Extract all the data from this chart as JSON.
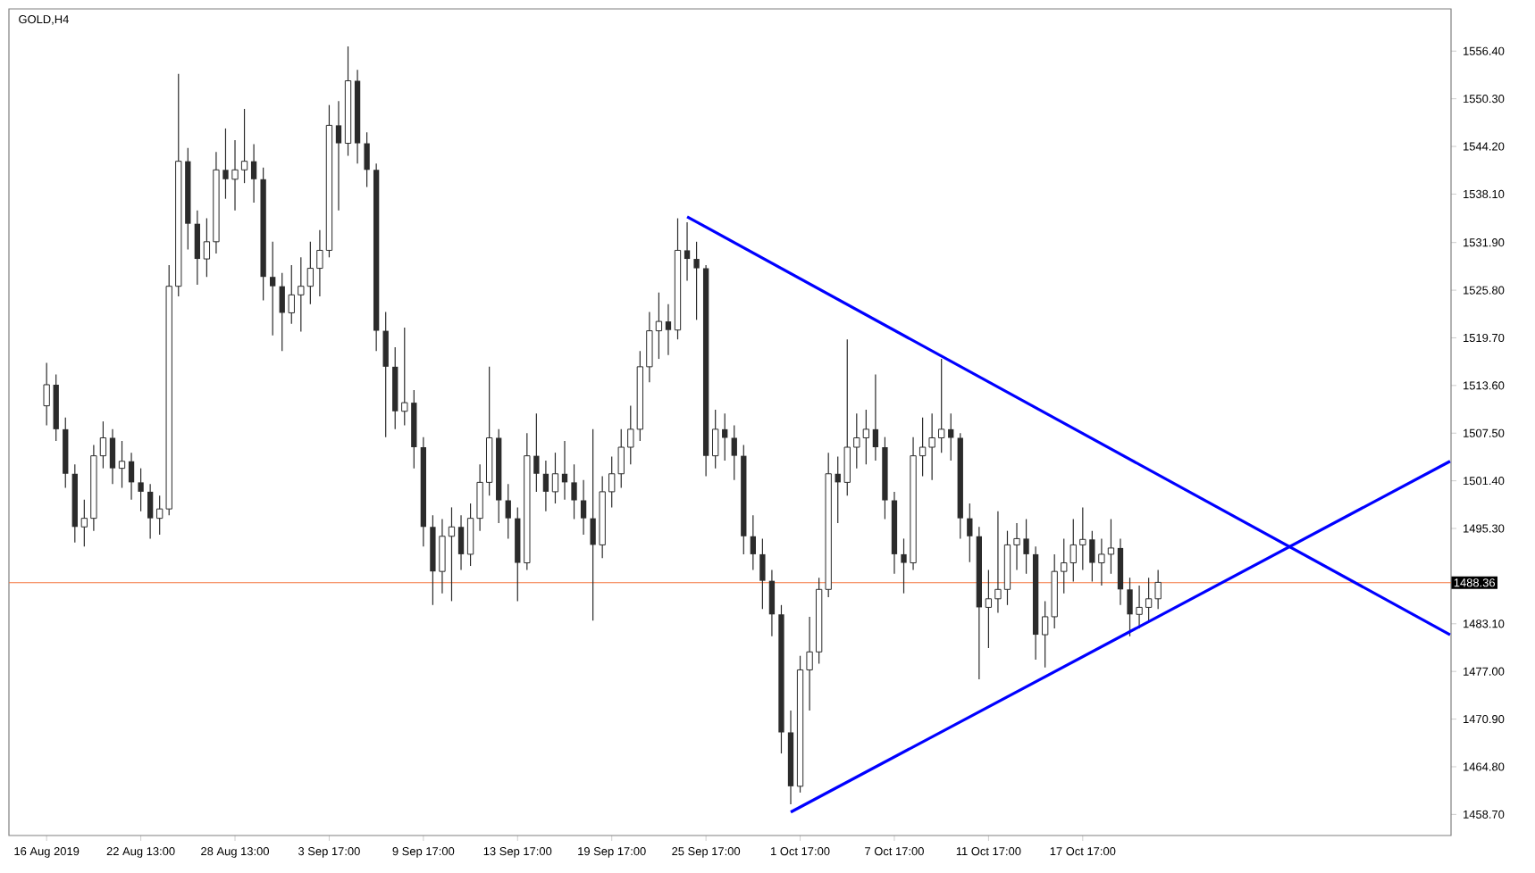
{
  "chart_data": {
    "type": "candlestick",
    "title": "GOLD,H4",
    "color": "#2b2b2b",
    "categories": [
      "16 Aug 2019",
      null,
      null,
      null,
      null,
      null,
      null,
      null,
      null,
      null,
      "22 Aug 13:00",
      null,
      null,
      null,
      null,
      null,
      null,
      null,
      null,
      null,
      "28 Aug 13:00",
      null,
      null,
      null,
      null,
      null,
      null,
      null,
      null,
      null,
      "3 Sep 17:00",
      null,
      null,
      null,
      null,
      null,
      null,
      null,
      null,
      null,
      "9 Sep 17:00",
      null,
      null,
      null,
      null,
      null,
      null,
      null,
      null,
      null,
      "13 Sep 17:00",
      null,
      null,
      null,
      null,
      null,
      null,
      null,
      null,
      null,
      "19 Sep 17:00",
      null,
      null,
      null,
      null,
      null,
      null,
      null,
      null,
      null,
      "25 Sep 17:00",
      null,
      null,
      null,
      null,
      null,
      null,
      null,
      null,
      null,
      "1 Oct 17:00",
      null,
      null,
      null,
      null,
      null,
      null,
      null,
      null,
      null,
      "7 Oct 17:00",
      null,
      null,
      null,
      null,
      null,
      null,
      null,
      null,
      null,
      "11 Oct 17:00",
      null,
      null,
      null,
      null,
      null,
      null,
      null,
      null,
      null,
      "17 Oct 17:00",
      null,
      null,
      null,
      null,
      null,
      null,
      null,
      null,
      null,
      null,
      null,
      null,
      null,
      null,
      null,
      null,
      null,
      null,
      null,
      null,
      null,
      null,
      null,
      null,
      null,
      null,
      null,
      null,
      null,
      null,
      null,
      null,
      null,
      null,
      null,
      null,
      null,
      null,
      null
    ],
    "ohlc": [
      [
        1511.0,
        1516.5,
        1508.5,
        1513.7
      ],
      [
        1513.7,
        1515.0,
        1506.5,
        1508.0
      ],
      [
        1508.0,
        1509.5,
        1500.5,
        1502.3
      ],
      [
        1502.3,
        1503.5,
        1493.5,
        1495.5
      ],
      [
        1495.5,
        1499.0,
        1493.0,
        1496.6
      ],
      [
        1496.6,
        1506.0,
        1495.0,
        1504.6
      ],
      [
        1504.6,
        1509.0,
        1503.0,
        1506.9
      ],
      [
        1506.9,
        1508.0,
        1501.0,
        1503.0
      ],
      [
        1503.0,
        1506.5,
        1500.5,
        1503.9
      ],
      [
        1503.9,
        1505.0,
        1499.0,
        1501.2
      ],
      [
        1501.2,
        1503.0,
        1497.5,
        1500.0
      ],
      [
        1500.0,
        1501.0,
        1494.0,
        1496.6
      ],
      [
        1496.6,
        1499.5,
        1494.5,
        1497.8
      ],
      [
        1497.8,
        1529.0,
        1497.0,
        1526.3
      ],
      [
        1526.3,
        1553.5,
        1525.0,
        1542.3
      ],
      [
        1542.3,
        1544.0,
        1531.0,
        1534.3
      ],
      [
        1534.3,
        1536.0,
        1526.5,
        1529.8
      ],
      [
        1529.8,
        1535.0,
        1527.5,
        1532.0
      ],
      [
        1532.0,
        1543.5,
        1530.5,
        1541.2
      ],
      [
        1541.2,
        1546.5,
        1537.5,
        1540.0
      ],
      [
        1540.0,
        1545.0,
        1536.0,
        1541.2
      ],
      [
        1541.2,
        1549.0,
        1539.5,
        1542.3
      ],
      [
        1542.3,
        1544.5,
        1537.0,
        1540.0
      ],
      [
        1540.0,
        1541.5,
        1524.5,
        1527.5
      ],
      [
        1527.5,
        1532.0,
        1520.0,
        1526.3
      ],
      [
        1526.3,
        1528.0,
        1518.0,
        1522.9
      ],
      [
        1522.9,
        1529.0,
        1521.5,
        1525.2
      ],
      [
        1525.2,
        1530.0,
        1520.5,
        1526.3
      ],
      [
        1526.3,
        1532.0,
        1524.0,
        1528.6
      ],
      [
        1528.6,
        1533.5,
        1525.0,
        1530.9
      ],
      [
        1530.9,
        1549.5,
        1530.0,
        1546.9
      ],
      [
        1546.9,
        1550.0,
        1536.0,
        1544.6
      ],
      [
        1544.6,
        1557.0,
        1543.0,
        1552.6
      ],
      [
        1552.6,
        1554.0,
        1542.0,
        1544.6
      ],
      [
        1544.6,
        1546.0,
        1539.0,
        1541.2
      ],
      [
        1541.2,
        1542.0,
        1518.0,
        1520.6
      ],
      [
        1520.6,
        1523.0,
        1507.0,
        1516.0
      ],
      [
        1516.0,
        1518.5,
        1508.0,
        1510.3
      ],
      [
        1510.3,
        1521.0,
        1508.5,
        1511.4
      ],
      [
        1511.4,
        1513.0,
        1503.0,
        1505.7
      ],
      [
        1505.7,
        1507.0,
        1493.0,
        1495.5
      ],
      [
        1495.5,
        1497.0,
        1485.5,
        1489.8
      ],
      [
        1489.8,
        1496.5,
        1487.0,
        1494.3
      ],
      [
        1494.3,
        1498.0,
        1486.0,
        1495.5
      ],
      [
        1495.5,
        1497.0,
        1490.0,
        1492.0
      ],
      [
        1492.0,
        1498.5,
        1490.5,
        1496.6
      ],
      [
        1496.6,
        1503.5,
        1495.0,
        1501.2
      ],
      [
        1501.2,
        1516.0,
        1499.5,
        1506.9
      ],
      [
        1506.9,
        1508.0,
        1496.0,
        1498.9
      ],
      [
        1498.9,
        1501.0,
        1494.0,
        1496.6
      ],
      [
        1496.6,
        1498.0,
        1486.0,
        1490.9
      ],
      [
        1490.9,
        1507.5,
        1490.0,
        1504.6
      ],
      [
        1504.6,
        1510.0,
        1500.0,
        1502.3
      ],
      [
        1502.3,
        1504.0,
        1497.5,
        1500.0
      ],
      [
        1500.0,
        1505.0,
        1498.5,
        1502.3
      ],
      [
        1502.3,
        1506.5,
        1499.0,
        1501.2
      ],
      [
        1501.2,
        1503.5,
        1496.5,
        1498.9
      ],
      [
        1498.9,
        1501.5,
        1494.5,
        1496.6
      ],
      [
        1496.6,
        1508.0,
        1483.5,
        1493.2
      ],
      [
        1493.2,
        1502.0,
        1491.5,
        1500.0
      ],
      [
        1500.0,
        1504.5,
        1498.0,
        1502.3
      ],
      [
        1502.3,
        1508.0,
        1500.5,
        1505.7
      ],
      [
        1505.7,
        1511.0,
        1503.5,
        1508.0
      ],
      [
        1508.0,
        1518.0,
        1506.5,
        1516.0
      ],
      [
        1516.0,
        1523.0,
        1514.0,
        1520.6
      ],
      [
        1520.6,
        1525.5,
        1517.0,
        1521.8
      ],
      [
        1521.8,
        1524.0,
        1517.5,
        1520.7
      ],
      [
        1520.7,
        1535.0,
        1519.5,
        1530.9
      ],
      [
        1530.9,
        1534.5,
        1527.0,
        1529.8
      ],
      [
        1529.8,
        1532.0,
        1522.0,
        1528.6
      ],
      [
        1528.6,
        1529.0,
        1502.0,
        1504.6
      ],
      [
        1504.6,
        1510.5,
        1503.0,
        1508.0
      ],
      [
        1508.0,
        1510.0,
        1504.0,
        1506.9
      ],
      [
        1506.9,
        1508.5,
        1501.5,
        1504.6
      ],
      [
        1504.6,
        1506.0,
        1492.0,
        1494.3
      ],
      [
        1494.3,
        1497.0,
        1490.0,
        1492.0
      ],
      [
        1492.0,
        1494.0,
        1485.0,
        1488.6
      ],
      [
        1488.6,
        1490.0,
        1481.5,
        1484.3
      ],
      [
        1484.3,
        1485.5,
        1466.5,
        1469.2
      ],
      [
        1469.2,
        1472.0,
        1460.0,
        1462.3
      ],
      [
        1462.3,
        1479.0,
        1461.5,
        1477.2
      ],
      [
        1477.2,
        1484.0,
        1472.0,
        1479.5
      ],
      [
        1479.5,
        1489.0,
        1478.0,
        1487.5
      ],
      [
        1487.5,
        1505.0,
        1486.5,
        1502.3
      ],
      [
        1502.3,
        1504.5,
        1496.0,
        1501.2
      ],
      [
        1501.2,
        1519.5,
        1499.5,
        1505.7
      ],
      [
        1505.7,
        1510.0,
        1503.0,
        1506.9
      ],
      [
        1506.9,
        1510.5,
        1503.5,
        1508.0
      ],
      [
        1508.0,
        1515.0,
        1504.0,
        1505.7
      ],
      [
        1505.7,
        1507.0,
        1496.5,
        1498.9
      ],
      [
        1498.9,
        1500.0,
        1489.5,
        1492.0
      ],
      [
        1492.0,
        1494.0,
        1487.0,
        1490.9
      ],
      [
        1490.9,
        1507.0,
        1490.0,
        1504.6
      ],
      [
        1504.6,
        1509.5,
        1502.0,
        1505.7
      ],
      [
        1505.7,
        1510.0,
        1501.5,
        1506.9
      ],
      [
        1506.9,
        1517.0,
        1505.0,
        1508.0
      ],
      [
        1508.0,
        1510.0,
        1504.0,
        1506.9
      ],
      [
        1506.9,
        1507.5,
        1494.0,
        1496.6
      ],
      [
        1496.6,
        1498.5,
        1491.0,
        1494.3
      ],
      [
        1494.3,
        1495.5,
        1476.0,
        1485.2
      ],
      [
        1485.2,
        1490.0,
        1480.0,
        1486.3
      ],
      [
        1486.3,
        1497.5,
        1484.5,
        1487.5
      ],
      [
        1487.5,
        1495.0,
        1485.5,
        1493.2
      ],
      [
        1493.2,
        1496.0,
        1490.0,
        1494.0
      ],
      [
        1494.0,
        1496.5,
        1489.5,
        1492.0
      ],
      [
        1492.0,
        1493.0,
        1478.5,
        1481.7
      ],
      [
        1481.7,
        1486.0,
        1477.5,
        1484.0
      ],
      [
        1484.0,
        1492.0,
        1482.5,
        1489.8
      ],
      [
        1489.8,
        1494.0,
        1487.0,
        1490.9
      ],
      [
        1490.9,
        1496.5,
        1488.5,
        1493.2
      ],
      [
        1493.2,
        1498.0,
        1490.0,
        1493.9
      ],
      [
        1493.9,
        1495.0,
        1488.5,
        1490.9
      ],
      [
        1490.9,
        1494.0,
        1488.0,
        1492.0
      ],
      [
        1492.0,
        1496.5,
        1489.5,
        1492.8
      ],
      [
        1492.8,
        1494.0,
        1485.5,
        1487.5
      ],
      [
        1487.5,
        1489.0,
        1481.5,
        1484.3
      ],
      [
        1484.3,
        1488.0,
        1482.5,
        1485.2
      ],
      [
        1485.2,
        1489.0,
        1483.5,
        1486.3
      ],
      [
        1486.3,
        1490.0,
        1485.0,
        1488.4
      ],
      null,
      null,
      null,
      null,
      null,
      null,
      null,
      null,
      null,
      null,
      null,
      null,
      null,
      null,
      null,
      null,
      null,
      null,
      null,
      null,
      null,
      null,
      null,
      null,
      null,
      null,
      null,
      null,
      null,
      null,
      null
    ],
    "series": [
      {
        "type": "line",
        "color": "#0000ff",
        "values": [
          null,
          null,
          null,
          null,
          null,
          null,
          null,
          null,
          null,
          null,
          null,
          null,
          null,
          null,
          null,
          null,
          null,
          null,
          null,
          null,
          null,
          null,
          null,
          null,
          null,
          null,
          null,
          null,
          null,
          null,
          null,
          null,
          null,
          null,
          null,
          null,
          null,
          null,
          null,
          null,
          null,
          null,
          null,
          null,
          null,
          null,
          null,
          null,
          null,
          null,
          null,
          null,
          null,
          null,
          null,
          null,
          null,
          null,
          null,
          null,
          null,
          null,
          null,
          null,
          null,
          null,
          null,
          null,
          1535.2,
          null,
          null,
          null,
          null,
          null,
          null,
          null,
          null,
          null,
          null,
          null,
          null,
          null,
          null,
          null,
          null,
          null,
          null,
          null,
          null,
          null,
          null,
          null,
          null,
          null,
          null,
          null,
          null,
          null,
          null,
          null,
          null,
          null,
          null,
          null,
          null,
          null,
          null,
          null,
          null,
          null,
          null,
          null,
          null,
          null,
          null,
          null,
          null,
          null,
          null,
          null,
          null,
          null,
          null,
          null,
          null,
          null,
          null,
          null,
          null,
          null,
          null,
          null,
          null,
          null,
          null,
          null,
          null,
          null,
          null,
          null,
          null,
          null,
          null,
          null,
          null,
          null,
          null,
          null,
          null,
          1481.7
        ]
      },
      {
        "type": "line",
        "color": "#0000ff",
        "values": [
          null,
          null,
          null,
          null,
          null,
          null,
          null,
          null,
          null,
          null,
          null,
          null,
          null,
          null,
          null,
          null,
          null,
          null,
          null,
          null,
          null,
          null,
          null,
          null,
          null,
          null,
          null,
          null,
          null,
          null,
          null,
          null,
          null,
          null,
          null,
          null,
          null,
          null,
          null,
          null,
          null,
          null,
          null,
          null,
          null,
          null,
          null,
          null,
          null,
          null,
          null,
          null,
          null,
          null,
          null,
          null,
          null,
          null,
          null,
          null,
          null,
          null,
          null,
          null,
          null,
          null,
          null,
          null,
          null,
          null,
          null,
          null,
          null,
          null,
          null,
          null,
          null,
          null,
          null,
          1459.0,
          null,
          null,
          null,
          null,
          null,
          null,
          null,
          null,
          null,
          null,
          null,
          null,
          null,
          null,
          null,
          null,
          null,
          null,
          null,
          null,
          null,
          null,
          null,
          null,
          null,
          null,
          null,
          null,
          null,
          null,
          null,
          null,
          null,
          null,
          null,
          null,
          null,
          null,
          null,
          null,
          null,
          null,
          null,
          null,
          null,
          null,
          null,
          null,
          null,
          null,
          null,
          null,
          null,
          null,
          null,
          null,
          null,
          null,
          null,
          null,
          null,
          null,
          null,
          null,
          null,
          null,
          null,
          null,
          null,
          1503.9
        ]
      }
    ],
    "ylim": [
      1456.0,
      1561.8
    ],
    "yticks": [
      {
        "value": 1458.7,
        "label": "1458.70"
      },
      {
        "value": 1464.8,
        "label": "1464.80"
      },
      {
        "value": 1470.9,
        "label": "1470.90"
      },
      {
        "value": 1477.0,
        "label": "1477.00"
      },
      {
        "value": 1483.1,
        "label": "1483.10"
      },
      {
        "value": 1495.3,
        "label": "1495.30"
      },
      {
        "value": 1501.4,
        "label": "1501.40"
      },
      {
        "value": 1507.5,
        "label": "1507.50"
      },
      {
        "value": 1513.6,
        "label": "1513.60"
      },
      {
        "value": 1519.7,
        "label": "1519.70"
      },
      {
        "value": 1525.8,
        "label": "1525.80"
      },
      {
        "value": 1531.9,
        "label": "1531.90"
      },
      {
        "value": 1538.1,
        "label": "1538.10"
      },
      {
        "value": 1544.2,
        "label": "1544.20"
      },
      {
        "value": 1550.3,
        "label": "1550.30"
      },
      {
        "value": 1556.4,
        "label": "1556.40"
      }
    ],
    "ref_lines": [
      {
        "axis": "y",
        "value": 1488.36,
        "label": "1488.36",
        "color": "#f4733b"
      }
    ]
  }
}
